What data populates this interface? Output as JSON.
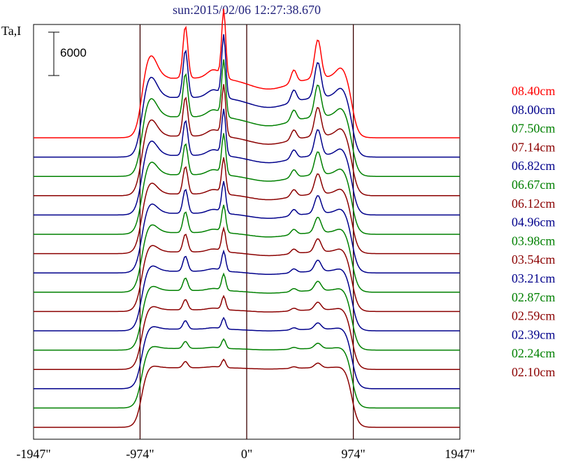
{
  "chart_data": {
    "type": "line",
    "title": "sun:2015/02/06 12:27:38.670",
    "ylabel": "Ta,I",
    "scale_bar_label": "6000",
    "scale_bar_value": 6000,
    "xlim": [
      -1947,
      1947
    ],
    "x_ticks": [
      {
        "value": -1947,
        "label": "-1947\""
      },
      {
        "value": -974,
        "label": "-974\""
      },
      {
        "value": 0,
        "label": "0\""
      },
      {
        "value": 974,
        "label": "974\""
      },
      {
        "value": 1947,
        "label": "1947\""
      }
    ],
    "vertical_lines": [
      -974,
      0,
      974
    ],
    "series": [
      {
        "name": "08.40cm",
        "color": "#ff0000"
      },
      {
        "name": "08.00cm",
        "color": "#00008b"
      },
      {
        "name": "07.50cm",
        "color": "#008000"
      },
      {
        "name": "07.14cm",
        "color": "#8b0000"
      },
      {
        "name": "06.82cm",
        "color": "#00008b"
      },
      {
        "name": "06.67cm",
        "color": "#008000"
      },
      {
        "name": "06.12cm",
        "color": "#8b0000"
      },
      {
        "name": "04.96cm",
        "color": "#00008b"
      },
      {
        "name": "03.98cm",
        "color": "#008000"
      },
      {
        "name": "03.54cm",
        "color": "#8b0000"
      },
      {
        "name": "03.21cm",
        "color": "#00008b"
      },
      {
        "name": "02.87cm",
        "color": "#008000"
      },
      {
        "name": "02.59cm",
        "color": "#8b0000"
      },
      {
        "name": "02.39cm",
        "color": "#00008b"
      },
      {
        "name": "02.24cm",
        "color": "#008000"
      },
      {
        "name": "02.10cm",
        "color": "#8b0000"
      }
    ]
  }
}
